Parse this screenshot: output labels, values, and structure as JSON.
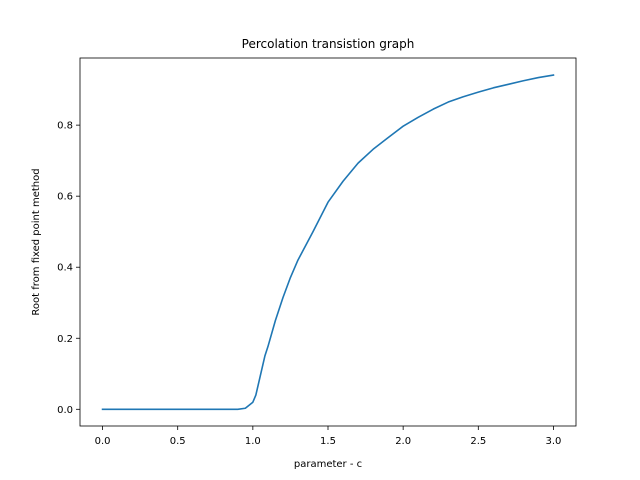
{
  "chart_data": {
    "type": "line",
    "title": "Percolation transistion graph",
    "xlabel": "parameter - c",
    "ylabel": "Root from fixed point method",
    "xlim": [
      -0.15,
      3.15
    ],
    "ylim": [
      -0.047,
      0.989
    ],
    "xticks": [
      0.0,
      0.5,
      1.0,
      1.5,
      2.0,
      2.5,
      3.0
    ],
    "xtick_labels": [
      "0.0",
      "0.5",
      "1.0",
      "1.5",
      "2.0",
      "2.5",
      "3.0"
    ],
    "yticks": [
      0.0,
      0.2,
      0.4,
      0.6,
      0.8
    ],
    "ytick_labels": [
      "0.0",
      "0.2",
      "0.4",
      "0.6",
      "0.8"
    ],
    "grid": false,
    "legend": "none",
    "line_color": "#1f77b4",
    "series": [
      {
        "x": [
          0.0,
          0.2,
          0.4,
          0.6,
          0.8,
          0.9,
          0.95,
          1.0,
          1.02,
          1.05,
          1.08,
          1.1,
          1.15,
          1.2,
          1.25,
          1.3,
          1.4,
          1.5,
          1.6,
          1.7,
          1.8,
          1.9,
          2.0,
          2.1,
          2.2,
          2.3,
          2.4,
          2.5,
          2.6,
          2.7,
          2.8,
          2.9,
          3.0
        ],
        "y": [
          0.0,
          0.0,
          0.0,
          0.0,
          0.0,
          0.0,
          0.003,
          0.02,
          0.04,
          0.095,
          0.15,
          0.176,
          0.25,
          0.314,
          0.371,
          0.42,
          0.5,
          0.583,
          0.642,
          0.693,
          0.732,
          0.765,
          0.797,
          0.822,
          0.845,
          0.865,
          0.88,
          0.893,
          0.905,
          0.915,
          0.925,
          0.934,
          0.941
        ]
      }
    ]
  }
}
